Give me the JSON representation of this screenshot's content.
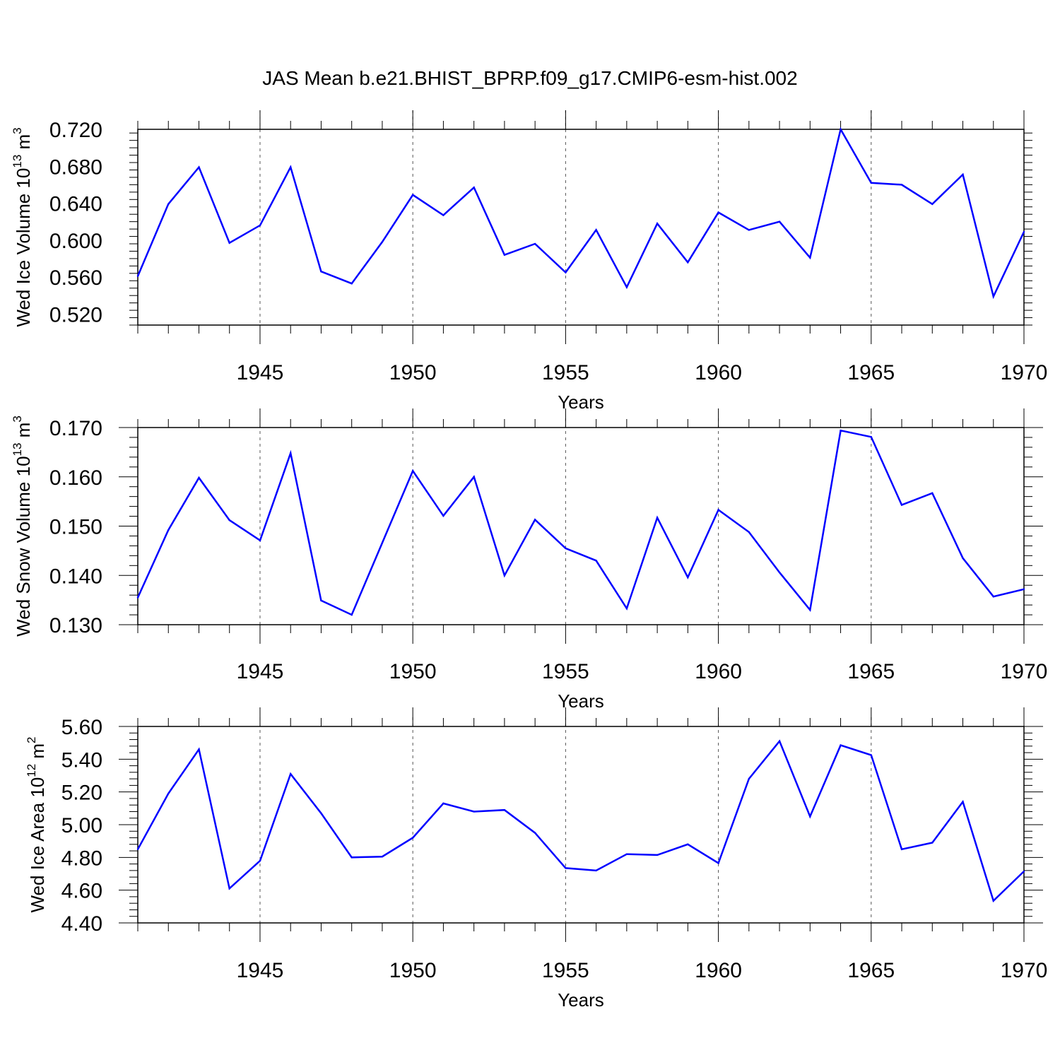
{
  "chart_data": [
    {
      "type": "line",
      "title": "JAS Mean b.e21.BHIST_BPRP.f09_g17.CMIP6-esm-hist.002",
      "ylabel": {
        "prefix": "Wed Ice Volume 10",
        "exponent": "13",
        "unit": " m",
        "unit_exponent": "3"
      },
      "xlabel": "Years",
      "xlim": [
        1941,
        1970
      ],
      "ylim": [
        0.508,
        0.72
      ],
      "yticks": [
        0.52,
        0.56,
        0.6,
        0.64,
        0.68,
        0.72
      ],
      "ytick_labels": [
        "0.520",
        "0.560",
        "0.600",
        "0.640",
        "0.680",
        "0.720"
      ],
      "xticks": [
        1945,
        1950,
        1955,
        1960,
        1965,
        1970
      ],
      "xtick_labels": [
        "1945",
        "1950",
        "1955",
        "1960",
        "1965",
        "1970"
      ],
      "x": [
        1941,
        1942,
        1943,
        1944,
        1945,
        1946,
        1947,
        1948,
        1949,
        1950,
        1951,
        1952,
        1953,
        1954,
        1955,
        1956,
        1957,
        1958,
        1959,
        1960,
        1961,
        1962,
        1963,
        1964,
        1965,
        1966,
        1967,
        1968,
        1969,
        1970
      ],
      "series": [
        {
          "name": "Wed Ice Volume",
          "color": "#0000ff",
          "values": [
            0.561,
            0.639,
            0.679,
            0.597,
            0.616,
            0.679,
            0.566,
            0.553,
            0.598,
            0.649,
            0.627,
            0.657,
            0.584,
            0.596,
            0.565,
            0.611,
            0.549,
            0.618,
            0.576,
            0.63,
            0.611,
            0.62,
            0.581,
            0.72,
            0.662,
            0.66,
            0.639,
            0.671,
            0.539,
            0.609
          ]
        }
      ]
    },
    {
      "type": "line",
      "ylabel": {
        "prefix": "Wed Snow Volume 10",
        "exponent": "13",
        "unit": " m",
        "unit_exponent": "3"
      },
      "xlabel": "Years",
      "xlim": [
        1941,
        1970
      ],
      "ylim": [
        0.13,
        0.17
      ],
      "yticks": [
        0.13,
        0.14,
        0.15,
        0.16,
        0.17
      ],
      "ytick_labels": [
        "0.130",
        "0.140",
        "0.150",
        "0.160",
        "0.170"
      ],
      "xticks": [
        1945,
        1950,
        1955,
        1960,
        1965,
        1970
      ],
      "xtick_labels": [
        "1945",
        "1950",
        "1955",
        "1960",
        "1965",
        "1970"
      ],
      "x": [
        1941,
        1942,
        1943,
        1944,
        1945,
        1946,
        1947,
        1948,
        1949,
        1950,
        1951,
        1952,
        1953,
        1954,
        1955,
        1956,
        1957,
        1958,
        1959,
        1960,
        1961,
        1962,
        1963,
        1964,
        1965,
        1966,
        1967,
        1968,
        1969,
        1970
      ],
      "series": [
        {
          "name": "Wed Snow Volume",
          "color": "#0000ff",
          "values": [
            0.1355,
            0.1492,
            0.1598,
            0.1512,
            0.1471,
            0.1648,
            0.1349,
            0.132,
            0.1466,
            0.1612,
            0.1521,
            0.16,
            0.14,
            0.1513,
            0.1455,
            0.143,
            0.1333,
            0.1517,
            0.1396,
            0.1533,
            0.1488,
            0.1406,
            0.133,
            0.1694,
            0.1681,
            0.1543,
            0.1567,
            0.1435,
            0.1357,
            0.1372
          ]
        }
      ]
    },
    {
      "type": "line",
      "ylabel": {
        "prefix": "Wed Ice Area 10",
        "exponent": "12",
        "unit": " m",
        "unit_exponent": "2"
      },
      "xlabel": "Years",
      "xlim": [
        1941,
        1970
      ],
      "ylim": [
        4.4,
        5.6
      ],
      "yticks": [
        4.4,
        4.6,
        4.8,
        5.0,
        5.2,
        5.4,
        5.6
      ],
      "ytick_labels": [
        "4.40",
        "4.60",
        "4.80",
        "5.00",
        "5.20",
        "5.40",
        "5.60"
      ],
      "xticks": [
        1945,
        1950,
        1955,
        1960,
        1965,
        1970
      ],
      "xtick_labels": [
        "1945",
        "1950",
        "1955",
        "1960",
        "1965",
        "1970"
      ],
      "x": [
        1941,
        1942,
        1943,
        1944,
        1945,
        1946,
        1947,
        1948,
        1949,
        1950,
        1951,
        1952,
        1953,
        1954,
        1955,
        1956,
        1957,
        1958,
        1959,
        1960,
        1961,
        1962,
        1963,
        1964,
        1965,
        1966,
        1967,
        1968,
        1969,
        1970
      ],
      "series": [
        {
          "name": "Wed Ice Area",
          "color": "#0000ff",
          "values": [
            4.85,
            5.19,
            5.46,
            4.61,
            4.78,
            5.31,
            5.07,
            4.8,
            4.805,
            4.92,
            5.13,
            5.08,
            5.09,
            4.95,
            4.735,
            4.72,
            4.82,
            4.815,
            4.88,
            4.765,
            5.28,
            5.51,
            5.05,
            5.485,
            5.425,
            4.85,
            4.89,
            5.14,
            4.535,
            4.715
          ]
        }
      ]
    }
  ]
}
